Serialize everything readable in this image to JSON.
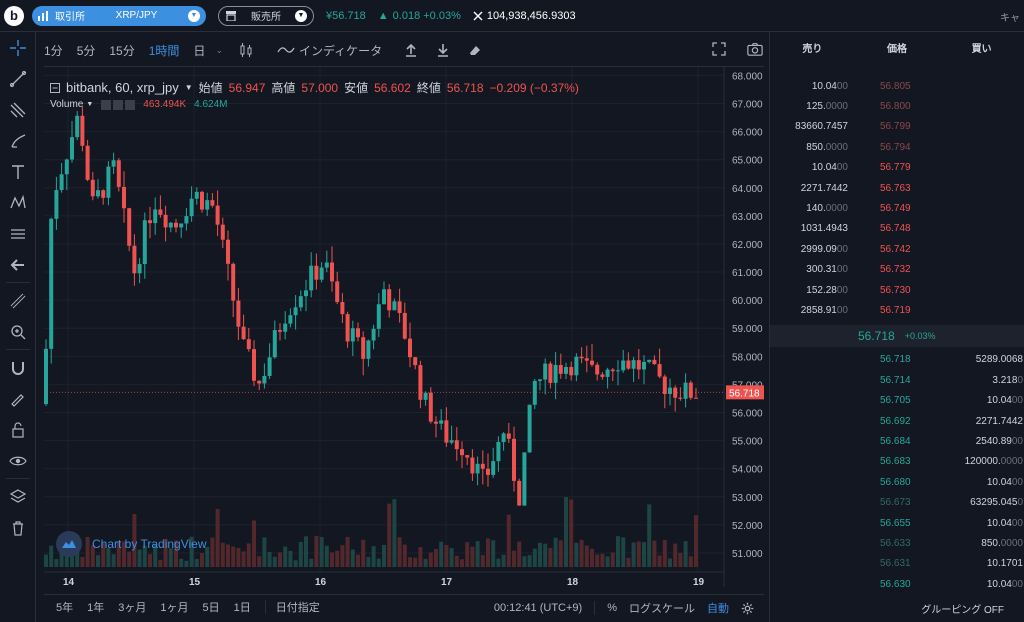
{
  "topbar": {
    "logo": "b",
    "exchange_label": "取引所",
    "pair": "XRP/JPY",
    "sales_label": "販売所",
    "price": "¥56.718",
    "change": "0.018 +0.03%",
    "volume": "104,938,456.9303",
    "right_text": "キャ"
  },
  "toolbar": {
    "intervals": [
      "1分",
      "5分",
      "15分",
      "1時間",
      "日"
    ],
    "active_interval": "1時間",
    "indicator_label": "インディケータ"
  },
  "legend": {
    "symbol": "bitbank, 60, xrp_jpy",
    "open_label": "始値",
    "open": "56.947",
    "high_label": "高値",
    "high": "57.000",
    "low_label": "安値",
    "low": "56.602",
    "close_label": "終値",
    "close": "56.718",
    "change": "−0.209 (−0.37%)",
    "volume_label": "Volume",
    "vol1": "463.494K",
    "vol2": "4.624M"
  },
  "tradingview_label": "Chart by TradingView",
  "bottom": {
    "ranges": [
      "5年",
      "1年",
      "3ヶ月",
      "1ヶ月",
      "5日",
      "1日"
    ],
    "date_label": "日付指定",
    "time": "00:12:41 (UTC+9)",
    "percent": "%",
    "log": "ログスケール",
    "auto": "自動"
  },
  "chart_data": {
    "type": "candlestick",
    "y_ticks": [
      "68.000",
      "67.000",
      "66.000",
      "65.000",
      "64.000",
      "63.000",
      "62.000",
      "61.000",
      "60.000",
      "59.000",
      "58.000",
      "57.000",
      "56.000",
      "55.000",
      "54.000",
      "53.000",
      "52.000",
      "51.000"
    ],
    "ylim": [
      50.5,
      68.3
    ],
    "x_ticks": [
      "14",
      "15",
      "16",
      "17",
      "18",
      "19"
    ],
    "last_price": "56.718",
    "up_color": "#26a69a",
    "down_color": "#ef5350"
  },
  "orderbook": {
    "headers": [
      "売り",
      "価格",
      "買い"
    ],
    "asks": [
      {
        "qty": "10.04",
        "qty_dim": "00",
        "price": "56.805",
        "dim": true
      },
      {
        "qty": "125.",
        "qty_dim": "0000",
        "price": "56.800",
        "dim": true
      },
      {
        "qty": "83660.7457",
        "qty_dim": "",
        "price": "56.799",
        "dim": true
      },
      {
        "qty": "850.",
        "qty_dim": "0000",
        "price": "56.794",
        "dim": true
      },
      {
        "qty": "10.04",
        "qty_dim": "00",
        "price": "56.779",
        "dim": false
      },
      {
        "qty": "2271.7442",
        "qty_dim": "",
        "price": "56.763",
        "dim": false
      },
      {
        "qty": "140.",
        "qty_dim": "0000",
        "price": "56.749",
        "dim": false
      },
      {
        "qty": "1031.4943",
        "qty_dim": "",
        "price": "56.748",
        "dim": false
      },
      {
        "qty": "2999.09",
        "qty_dim": "00",
        "price": "56.742",
        "dim": false
      },
      {
        "qty": "300.31",
        "qty_dim": "00",
        "price": "56.732",
        "dim": false
      },
      {
        "qty": "152.28",
        "qty_dim": "00",
        "price": "56.730",
        "dim": false
      },
      {
        "qty": "2858.91",
        "qty_dim": "00",
        "price": "56.719",
        "dim": false
      }
    ],
    "mid_price": "56.718",
    "mid_change": "+0.03%",
    "bids": [
      {
        "price": "56.718",
        "qty": "5289.0068",
        "qty_dim": "",
        "dim": false
      },
      {
        "price": "56.714",
        "qty": "3.218",
        "qty_dim": "0",
        "dim": false
      },
      {
        "price": "56.705",
        "qty": "10.04",
        "qty_dim": "00",
        "dim": false
      },
      {
        "price": "56.692",
        "qty": "2271.7442",
        "qty_dim": "",
        "dim": false
      },
      {
        "price": "56.684",
        "qty": "2540.89",
        "qty_dim": "00",
        "dim": false
      },
      {
        "price": "56.683",
        "qty": "120000.",
        "qty_dim": "0000",
        "dim": false
      },
      {
        "price": "56.680",
        "qty": "10.04",
        "qty_dim": "00",
        "dim": false
      },
      {
        "price": "56.673",
        "qty": "63295.045",
        "qty_dim": "0",
        "dim": true
      },
      {
        "price": "56.655",
        "qty": "10.04",
        "qty_dim": "00",
        "dim": false
      },
      {
        "price": "56.633",
        "qty": "850.",
        "qty_dim": "0000",
        "dim": true
      },
      {
        "price": "56.631",
        "qty": "10.1701",
        "qty_dim": "",
        "dim": true
      },
      {
        "price": "56.630",
        "qty": "10.04",
        "qty_dim": "00",
        "dim": false
      }
    ],
    "grouping": "グルーピング OFF"
  }
}
